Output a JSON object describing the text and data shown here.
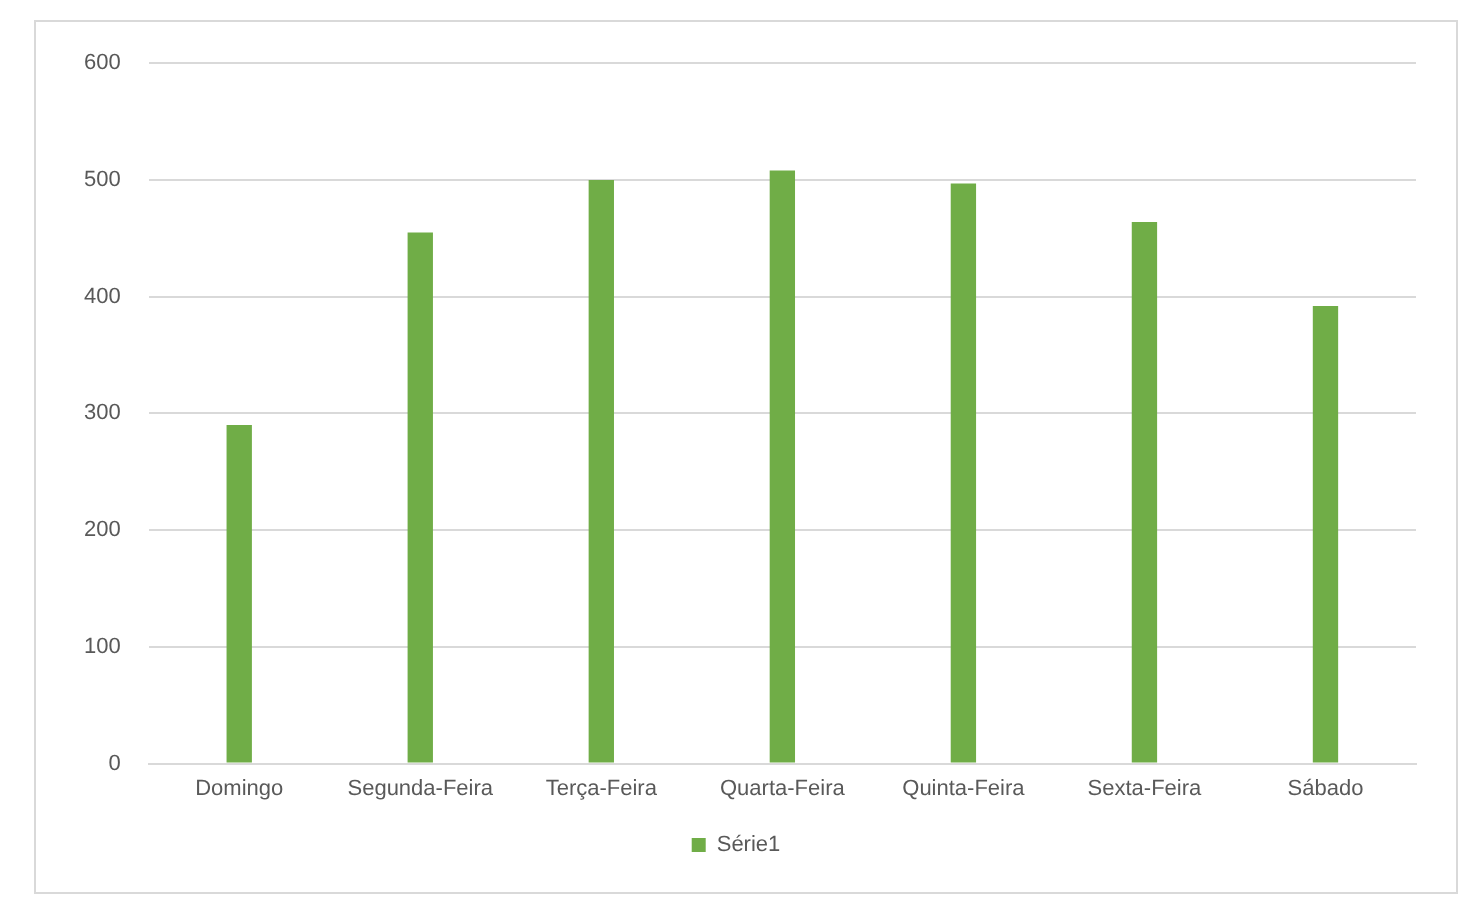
{
  "chart_data": {
    "type": "bar",
    "categories": [
      "Domingo",
      "Segunda-Feira",
      "Terça-Feira",
      "Quarta-Feira",
      "Quinta-Feira",
      "Sexta-Feira",
      "Sábado"
    ],
    "series": [
      {
        "name": "Série1",
        "color": "#70ad47",
        "values": [
          290,
          455,
          500,
          508,
          497,
          464,
          392
        ]
      }
    ],
    "ylim": [
      0,
      600
    ],
    "yticks": [
      0,
      100,
      200,
      300,
      400,
      500,
      600
    ],
    "grid": "y",
    "legend": "bottom"
  }
}
